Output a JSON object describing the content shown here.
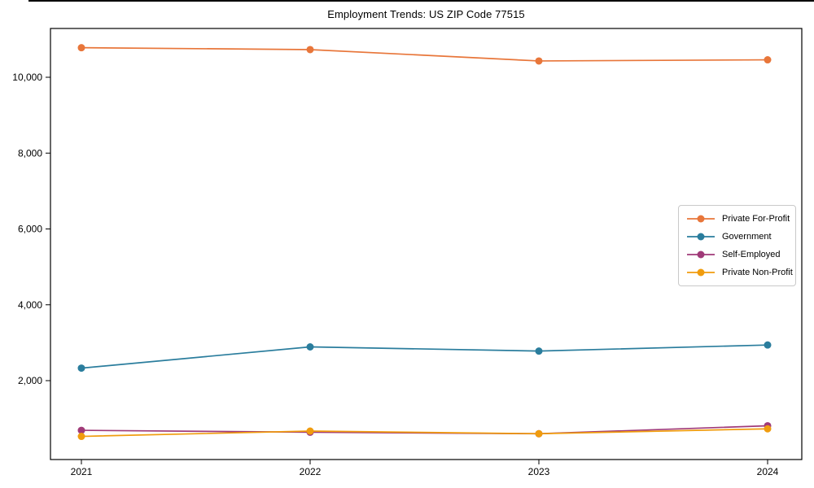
{
  "figure": {
    "background": "#ffffff",
    "axis_color": "#000000",
    "legend_border": "#c9c9c9"
  },
  "chart_data": {
    "type": "line",
    "title": "Employment Trends: US ZIP Code 77515",
    "x": [
      2021,
      2022,
      2023,
      2024
    ],
    "x_tick_labels": [
      "2021",
      "2022",
      "2023",
      "2024"
    ],
    "y_tick_values": [
      2000,
      4000,
      6000,
      8000,
      10000
    ],
    "y_tick_labels": [
      "2,000",
      "4,000",
      "6,000",
      "8,000",
      "10,000"
    ],
    "ylim": [
      -80,
      11290
    ],
    "grid": false,
    "legend_position": "center right",
    "series": [
      {
        "name": "Private For-Profit",
        "color": "#e8763a",
        "values": [
          10780,
          10730,
          10430,
          10460
        ]
      },
      {
        "name": "Government",
        "color": "#2a7d9d",
        "values": [
          2330,
          2890,
          2780,
          2940
        ]
      },
      {
        "name": "Self-Employed",
        "color": "#a03a78",
        "values": [
          690,
          640,
          600,
          810
        ]
      },
      {
        "name": "Private Non-Profit",
        "color": "#f09c0e",
        "values": [
          530,
          670,
          600,
          730
        ]
      }
    ]
  }
}
